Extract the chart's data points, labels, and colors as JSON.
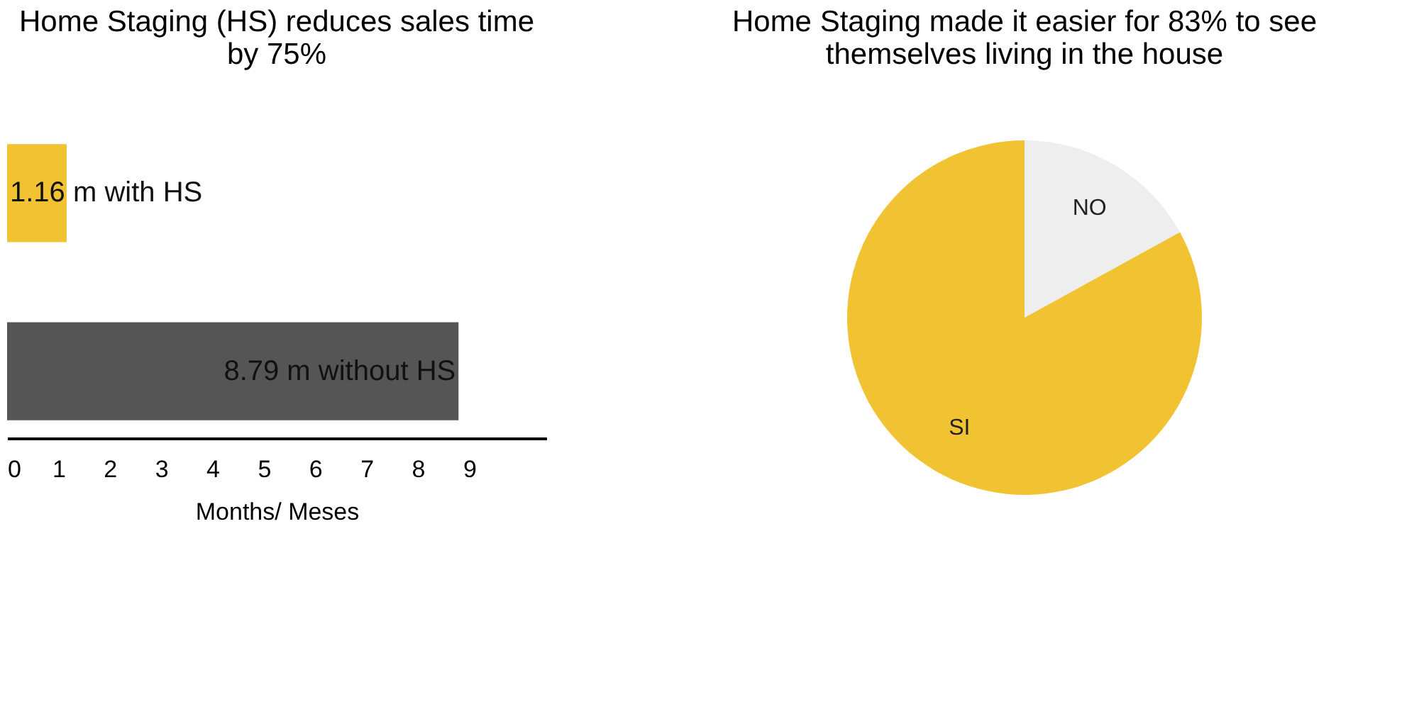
{
  "chart_data": [
    {
      "type": "bar",
      "orientation": "horizontal",
      "title": "Home Staging (HS) reduces sales time by 75%",
      "xlabel": "Months/ Meses",
      "categories": [
        null,
        null
      ],
      "values": [
        1.16,
        8.79
      ],
      "colors": [
        "#f1c232",
        "#555555"
      ],
      "value_labels": [
        "1.16 m with HS",
        "8.79 m without HS"
      ],
      "xlim": [
        0,
        10.5
      ],
      "xticks": [
        0,
        1,
        2,
        3,
        4,
        5,
        6,
        7,
        8,
        9
      ],
      "grid": false
    },
    {
      "type": "pie",
      "title": "Home Staging made it easier for 83% to see themselves living in the house",
      "categories": [
        "NO",
        "SI"
      ],
      "values": [
        17,
        83
      ],
      "colors": [
        "#eeeeee",
        "#f1c232"
      ]
    }
  ]
}
